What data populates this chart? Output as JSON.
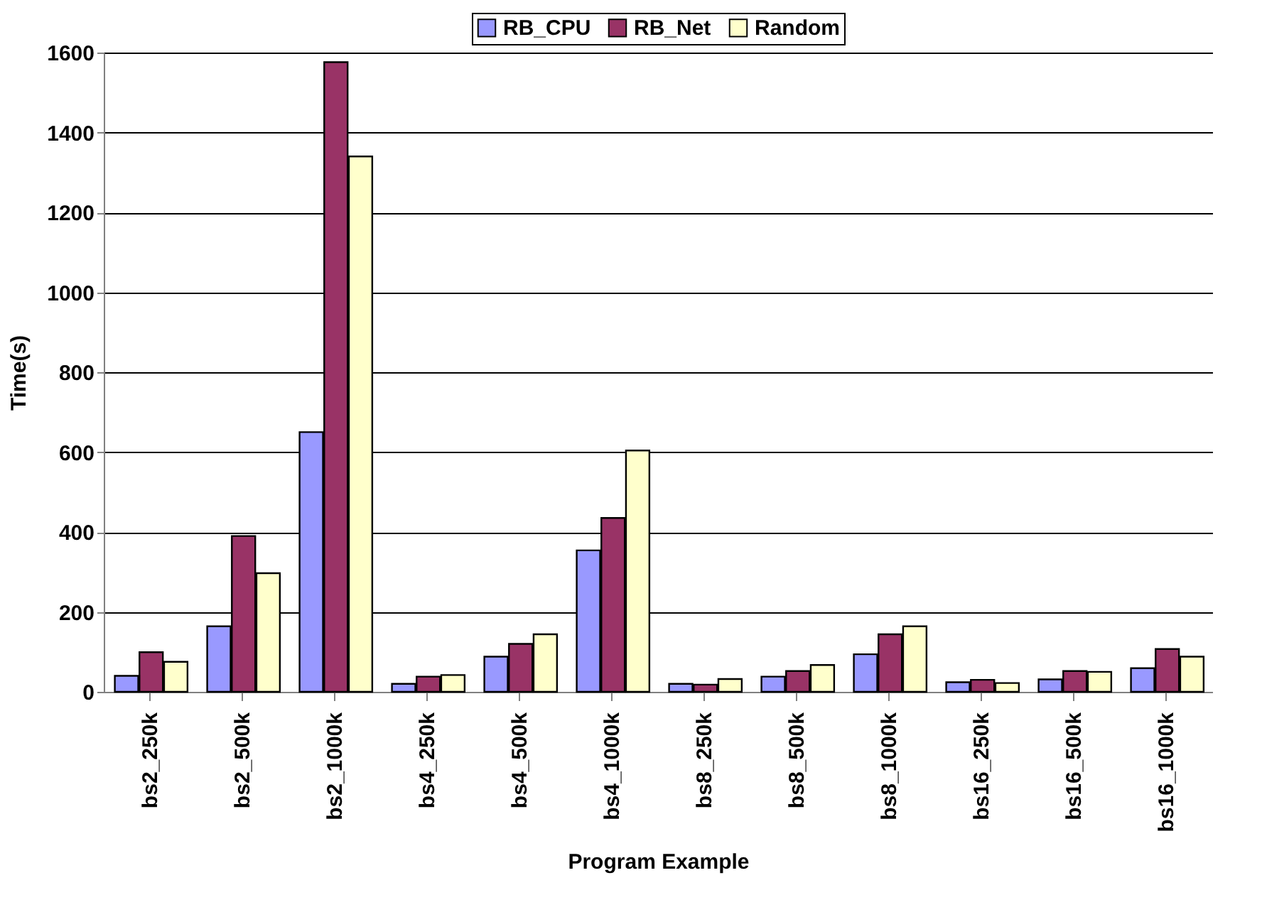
{
  "chart_data": {
    "type": "bar",
    "xlabel": "Program Example",
    "ylabel": "Time(s)",
    "categories": [
      "bs2_250k",
      "bs2_500k",
      "bs2_1000k",
      "bs4_250k",
      "bs4_500k",
      "bs4_1000k",
      "bs8_250k",
      "bs8_500k",
      "bs8_1000k",
      "bs16_250k",
      "bs16_500k",
      "bs16_1000k"
    ],
    "series": [
      {
        "name": "RB_CPU",
        "color": "#9999ff",
        "values": [
          40,
          164,
          650,
          20,
          88,
          354,
          20,
          38,
          94,
          24,
          31,
          59
        ]
      },
      {
        "name": "RB_Net",
        "color": "#993366",
        "values": [
          99,
          390,
          1576,
          38,
          120,
          435,
          18,
          52,
          144,
          30,
          52,
          107
        ]
      },
      {
        "name": "Random",
        "color": "#ffffcc",
        "values": [
          75,
          297,
          1340,
          42,
          144,
          604,
          32,
          67,
          164,
          22,
          50,
          88
        ]
      }
    ],
    "ylim": [
      0,
      1600
    ],
    "yticks": [
      0,
      200,
      400,
      600,
      800,
      1000,
      1200,
      1400,
      1600
    ],
    "grid": "y",
    "legend": "top"
  }
}
